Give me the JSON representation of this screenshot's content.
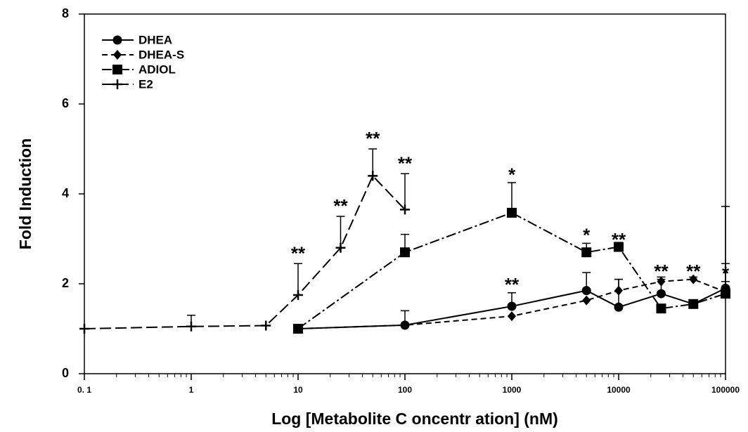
{
  "chart_data": {
    "type": "line",
    "xlabel": "Log [Metabolite C oncentr ation] (nM)",
    "ylabel": "Fold Induction",
    "xscale": "log",
    "xlim": [
      0.1,
      100000
    ],
    "xticks": [
      {
        "value": 0.1,
        "label": "0. 1"
      },
      1,
      10,
      100,
      1000,
      10000,
      100000
    ],
    "ylim": [
      0,
      8
    ],
    "yticks": [
      0,
      2,
      4,
      6,
      8
    ],
    "legend": "upper left",
    "series": [
      {
        "name": "DHEA",
        "color": "#000000",
        "marker": "circle",
        "linestyle": "solid",
        "x": [
          10,
          100,
          1000,
          5000,
          10000,
          25000,
          50000,
          100000
        ],
        "values": [
          1.0,
          1.08,
          1.5,
          1.85,
          1.48,
          1.78,
          1.55,
          1.9
        ],
        "errors": [
          null,
          0.32,
          0.3,
          0.4,
          0.62,
          0.32,
          null,
          1.82
        ]
      },
      {
        "name": "DHEA-S",
        "color": "#000000",
        "marker": "diamond",
        "linestyle": "dashed",
        "x": [
          10,
          100,
          1000,
          5000,
          10000,
          25000,
          50000,
          100000
        ],
        "values": [
          1.0,
          1.08,
          1.28,
          1.63,
          1.85,
          2.05,
          2.1,
          1.82
        ],
        "errors": [
          null,
          null,
          null,
          null,
          0.25,
          0.1,
          0.05,
          0.63
        ]
      },
      {
        "name": "ADIOL",
        "color": "#000000",
        "marker": "square",
        "linestyle": "dashdot",
        "x": [
          10,
          100,
          1000,
          5000,
          10000,
          25000,
          50000,
          100000
        ],
        "values": [
          1.0,
          2.7,
          3.58,
          2.7,
          2.82,
          1.45,
          1.55,
          1.78
        ],
        "errors": [
          null,
          0.4,
          0.67,
          0.2,
          0.1,
          null,
          null,
          0.27
        ]
      },
      {
        "name": "E2",
        "color": "#000000",
        "marker": "plus",
        "linestyle": "longdash",
        "x": [
          0.1,
          1,
          5,
          10,
          25,
          50,
          100
        ],
        "values": [
          1.0,
          1.05,
          1.07,
          1.75,
          2.8,
          4.4,
          3.65
        ],
        "errors": [
          null,
          0.25,
          null,
          0.7,
          0.7,
          0.6,
          0.8
        ]
      }
    ],
    "annotations": [
      {
        "text": "**",
        "x": 10,
        "y": 2.65
      },
      {
        "text": "**",
        "x": 25,
        "y": 3.7
      },
      {
        "text": "**",
        "x": 50,
        "y": 5.2
      },
      {
        "text": "**",
        "x": 100,
        "y": 4.65
      },
      {
        "text": "*",
        "x": 1000,
        "y": 4.4
      },
      {
        "text": "**",
        "x": 1000,
        "y": 1.95
      },
      {
        "text": "*",
        "x": 5000,
        "y": 3.05
      },
      {
        "text": "**",
        "x": 10000,
        "y": 2.95
      },
      {
        "text": "**",
        "x": 25000,
        "y": 2.25
      },
      {
        "text": "**",
        "x": 50000,
        "y": 2.25
      },
      {
        "text": "*",
        "x": 100000,
        "y": 2.2
      }
    ]
  }
}
